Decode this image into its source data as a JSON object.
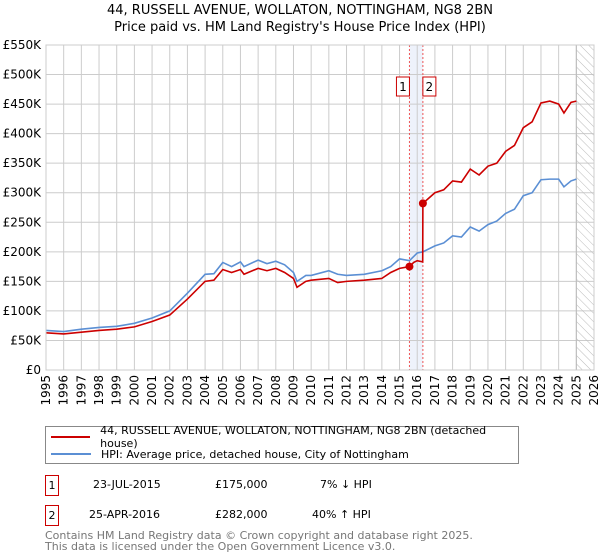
{
  "chart_data": {
    "type": "line",
    "title": "44, RUSSELL AVENUE, WOLLATON, NOTTINGHAM, NG8 2BN",
    "subtitle": "Price paid vs. HM Land Registry's House Price Index (HPI)",
    "xlim": [
      1995,
      2026
    ],
    "ylim": [
      0,
      550000
    ],
    "yticks": [
      {
        "v": 0,
        "label": "£0"
      },
      {
        "v": 50000,
        "label": "£50K"
      },
      {
        "v": 100000,
        "label": "£100K"
      },
      {
        "v": 150000,
        "label": "£150K"
      },
      {
        "v": 200000,
        "label": "£200K"
      },
      {
        "v": 250000,
        "label": "£250K"
      },
      {
        "v": 300000,
        "label": "£300K"
      },
      {
        "v": 350000,
        "label": "£350K"
      },
      {
        "v": 400000,
        "label": "£400K"
      },
      {
        "v": 450000,
        "label": "£450K"
      },
      {
        "v": 500000,
        "label": "£500K"
      },
      {
        "v": 550000,
        "label": "£550K"
      }
    ],
    "xticks": [
      "1995",
      "1996",
      "1997",
      "1998",
      "1999",
      "2000",
      "2001",
      "2002",
      "2003",
      "2004",
      "2005",
      "2006",
      "2007",
      "2008",
      "2009",
      "2010",
      "2011",
      "2012",
      "2013",
      "2014",
      "2015",
      "2016",
      "2017",
      "2018",
      "2019",
      "2020",
      "2021",
      "2022",
      "2023",
      "2024",
      "2025",
      "2026"
    ],
    "series": [
      {
        "name": "44, RUSSELL AVENUE, WOLLATON, NOTTINGHAM, NG8 2BN (detached house)",
        "color": "#cc0000",
        "x": [
          1995,
          1996,
          1997,
          1998,
          1999,
          2000,
          2001,
          2002,
          2003,
          2004,
          2004.5,
          2005,
          2005.5,
          2006,
          2006.2,
          2007,
          2007.5,
          2008,
          2008.5,
          2009,
          2009.2,
          2009.7,
          2010,
          2011,
          2011.5,
          2012,
          2013,
          2014,
          2014.5,
          2015,
          2015.56,
          2015.8,
          2016,
          2016.31,
          2016.32,
          2017,
          2017.5,
          2018,
          2018.5,
          2019,
          2019.5,
          2020,
          2020.5,
          2021,
          2021.5,
          2022,
          2022.5,
          2023,
          2023.5,
          2024,
          2024.3,
          2024.7,
          2025
        ],
        "y": [
          63000,
          61000,
          64000,
          67000,
          69000,
          73000,
          82000,
          93000,
          120000,
          150000,
          152000,
          170000,
          165000,
          170000,
          162000,
          172000,
          168000,
          172000,
          165000,
          155000,
          140000,
          150000,
          152000,
          155000,
          148000,
          150000,
          152000,
          155000,
          165000,
          172000,
          175000,
          182000,
          185000,
          183000,
          282000,
          300000,
          305000,
          320000,
          318000,
          340000,
          330000,
          345000,
          350000,
          370000,
          380000,
          410000,
          420000,
          452000,
          455000,
          450000,
          435000,
          453000,
          455000
        ]
      },
      {
        "name": "HPI: Average price, detached house, City of Nottingham",
        "color": "#5b8fd4",
        "x": [
          1995,
          1996,
          1997,
          1998,
          1999,
          2000,
          2001,
          2002,
          2003,
          2004,
          2004.5,
          2005,
          2005.5,
          2006,
          2006.2,
          2007,
          2007.5,
          2008,
          2008.5,
          2009,
          2009.2,
          2009.7,
          2010,
          2011,
          2011.5,
          2012,
          2013,
          2014,
          2014.5,
          2015,
          2015.56,
          2016,
          2016.32,
          2017,
          2017.5,
          2018,
          2018.5,
          2019,
          2019.5,
          2020,
          2020.5,
          2021,
          2021.5,
          2022,
          2022.5,
          2023,
          2023.5,
          2024,
          2024.3,
          2024.7,
          2025
        ],
        "y": [
          67000,
          65000,
          69000,
          72000,
          74000,
          79000,
          88000,
          100000,
          130000,
          162000,
          163000,
          182000,
          175000,
          183000,
          175000,
          186000,
          180000,
          184000,
          178000,
          165000,
          150000,
          160000,
          160000,
          168000,
          162000,
          160000,
          162000,
          168000,
          175000,
          188000,
          185000,
          198000,
          200000,
          210000,
          215000,
          227000,
          225000,
          242000,
          235000,
          246000,
          252000,
          265000,
          272000,
          295000,
          300000,
          322000,
          323000,
          323000,
          310000,
          320000,
          323000
        ]
      }
    ],
    "sales": [
      {
        "num": "1",
        "x": 2015.56,
        "y": 175000
      },
      {
        "num": "2",
        "x": 2016.32,
        "y": 282000
      }
    ],
    "hatch_from": 2025
  },
  "header": {
    "title": "44, RUSSELL AVENUE, WOLLATON, NOTTINGHAM, NG8 2BN",
    "subtitle": "Price paid vs. HM Land Registry's House Price Index (HPI)"
  },
  "legend": {
    "property": "44, RUSSELL AVENUE, WOLLATON, NOTTINGHAM, NG8 2BN (detached house)",
    "hpi": "HPI: Average price, detached house, City of Nottingham"
  },
  "transactions": [
    {
      "num": "1",
      "date": "23-JUL-2015",
      "price": "£175,000",
      "hpi": "7% ↓ HPI"
    },
    {
      "num": "2",
      "date": "25-APR-2016",
      "price": "£282,000",
      "hpi": "40% ↑ HPI"
    }
  ],
  "footer": {
    "line1": "Contains HM Land Registry data © Crown copyright and database right 2025.",
    "line2": "This data is licensed under the Open Government Licence v3.0."
  }
}
